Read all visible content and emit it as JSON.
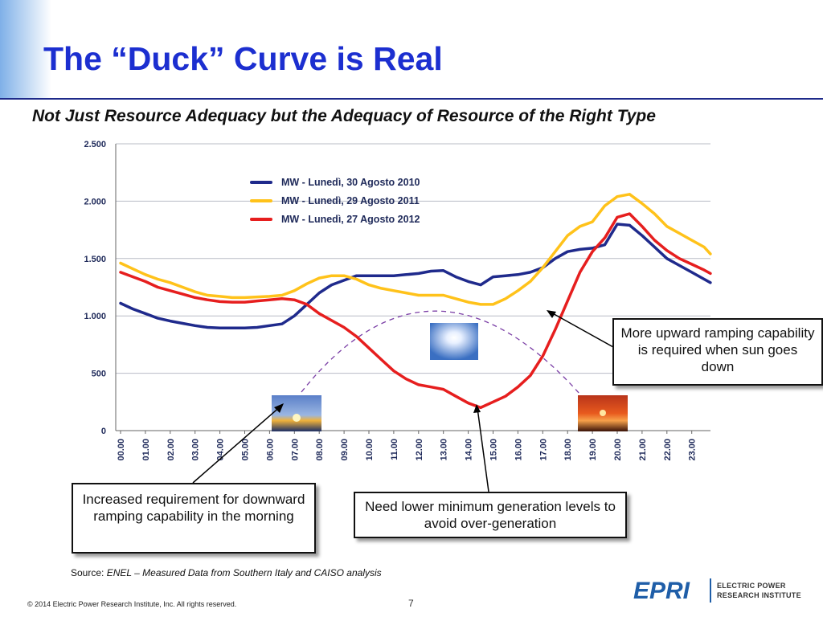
{
  "page": {
    "title": "The “Duck” Curve is Real",
    "subtitle": "Not Just Resource Adequacy but the Adequacy of Resource of the Right Type",
    "source_prefix": "Source: ",
    "source_text": "ENEL – Measured Data from Southern Italy and CAISO analysis",
    "footer": "© 2014 Electric Power Research Institute, Inc. All rights reserved.",
    "page_number": "7",
    "logo_name": "EPRI",
    "logo_line1": "ELECTRIC POWER",
    "logo_line2": "RESEARCH INSTITUTE",
    "callouts": {
      "upward": "More upward ramping capability is required when sun goes down",
      "downward": "Increased requirement for downward ramping capability in the morning",
      "mingen": "Need lower minimum generation levels to avoid over-generation"
    }
  },
  "chart_data": {
    "type": "line",
    "title": "",
    "xlabel": "",
    "ylabel": "",
    "ylim": [
      0,
      2500
    ],
    "yticks": [
      0,
      500,
      1000,
      1500,
      2000,
      2500
    ],
    "ytick_labels": [
      "0",
      "500",
      "1.000",
      "1.500",
      "2.000",
      "2.500"
    ],
    "x_categories": [
      "00.00",
      "01.00",
      "02.00",
      "03.00",
      "04.00",
      "05.00",
      "06.00",
      "07.00",
      "08.00",
      "09.00",
      "10.00",
      "11.00",
      "12.00",
      "13.00",
      "14.00",
      "15.00",
      "16.00",
      "17.00",
      "18.00",
      "19.00",
      "20.00",
      "21.00",
      "22.00",
      "23.00"
    ],
    "grid": "horizontal",
    "legend_position": "top-center",
    "x_hours": [
      0,
      0.5,
      1,
      1.5,
      2,
      2.5,
      3,
      3.5,
      4,
      4.5,
      5,
      5.5,
      6,
      6.5,
      7,
      7.5,
      8,
      8.5,
      9,
      9.5,
      10,
      10.5,
      11,
      11.5,
      12,
      12.5,
      13,
      13.5,
      14,
      14.5,
      15,
      15.5,
      16,
      16.5,
      17,
      17.5,
      18,
      18.5,
      19,
      19.5,
      20,
      20.5,
      21,
      21.5,
      22,
      22.5,
      23,
      23.5,
      23.75
    ],
    "series": [
      {
        "name": "MW - Lunedì, 30 Agosto 2010",
        "color": "#1f2a8c",
        "values": [
          1110,
          1060,
          1020,
          980,
          955,
          935,
          915,
          900,
          895,
          895,
          895,
          900,
          915,
          930,
          1000,
          1100,
          1200,
          1270,
          1310,
          1350,
          1350,
          1350,
          1350,
          1360,
          1370,
          1390,
          1395,
          1340,
          1300,
          1270,
          1340,
          1350,
          1360,
          1380,
          1420,
          1500,
          1560,
          1580,
          1590,
          1620,
          1800,
          1790,
          1700,
          1600,
          1500,
          1440,
          1380,
          1320,
          1290
        ]
      },
      {
        "name": "MW - Lunedì, 29 Agosto 2011",
        "color": "#ffc21a",
        "values": [
          1460,
          1410,
          1360,
          1320,
          1290,
          1250,
          1210,
          1180,
          1170,
          1160,
          1160,
          1165,
          1170,
          1180,
          1220,
          1280,
          1330,
          1350,
          1350,
          1320,
          1270,
          1240,
          1220,
          1200,
          1180,
          1180,
          1180,
          1150,
          1120,
          1100,
          1100,
          1150,
          1220,
          1300,
          1420,
          1560,
          1700,
          1780,
          1820,
          1960,
          2040,
          2060,
          1980,
          1890,
          1780,
          1720,
          1660,
          1600,
          1540
        ]
      },
      {
        "name": "MW - Lunedì, 27 Agosto 2012",
        "color": "#e61e1e",
        "values": [
          1380,
          1340,
          1300,
          1250,
          1220,
          1190,
          1160,
          1140,
          1125,
          1120,
          1120,
          1130,
          1140,
          1150,
          1140,
          1100,
          1020,
          960,
          900,
          820,
          720,
          620,
          520,
          450,
          400,
          380,
          360,
          300,
          240,
          200,
          250,
          300,
          380,
          480,
          650,
          880,
          1130,
          1380,
          1560,
          1680,
          1860,
          1890,
          1780,
          1660,
          1570,
          1500,
          1450,
          1400,
          1370
        ]
      }
    ]
  }
}
